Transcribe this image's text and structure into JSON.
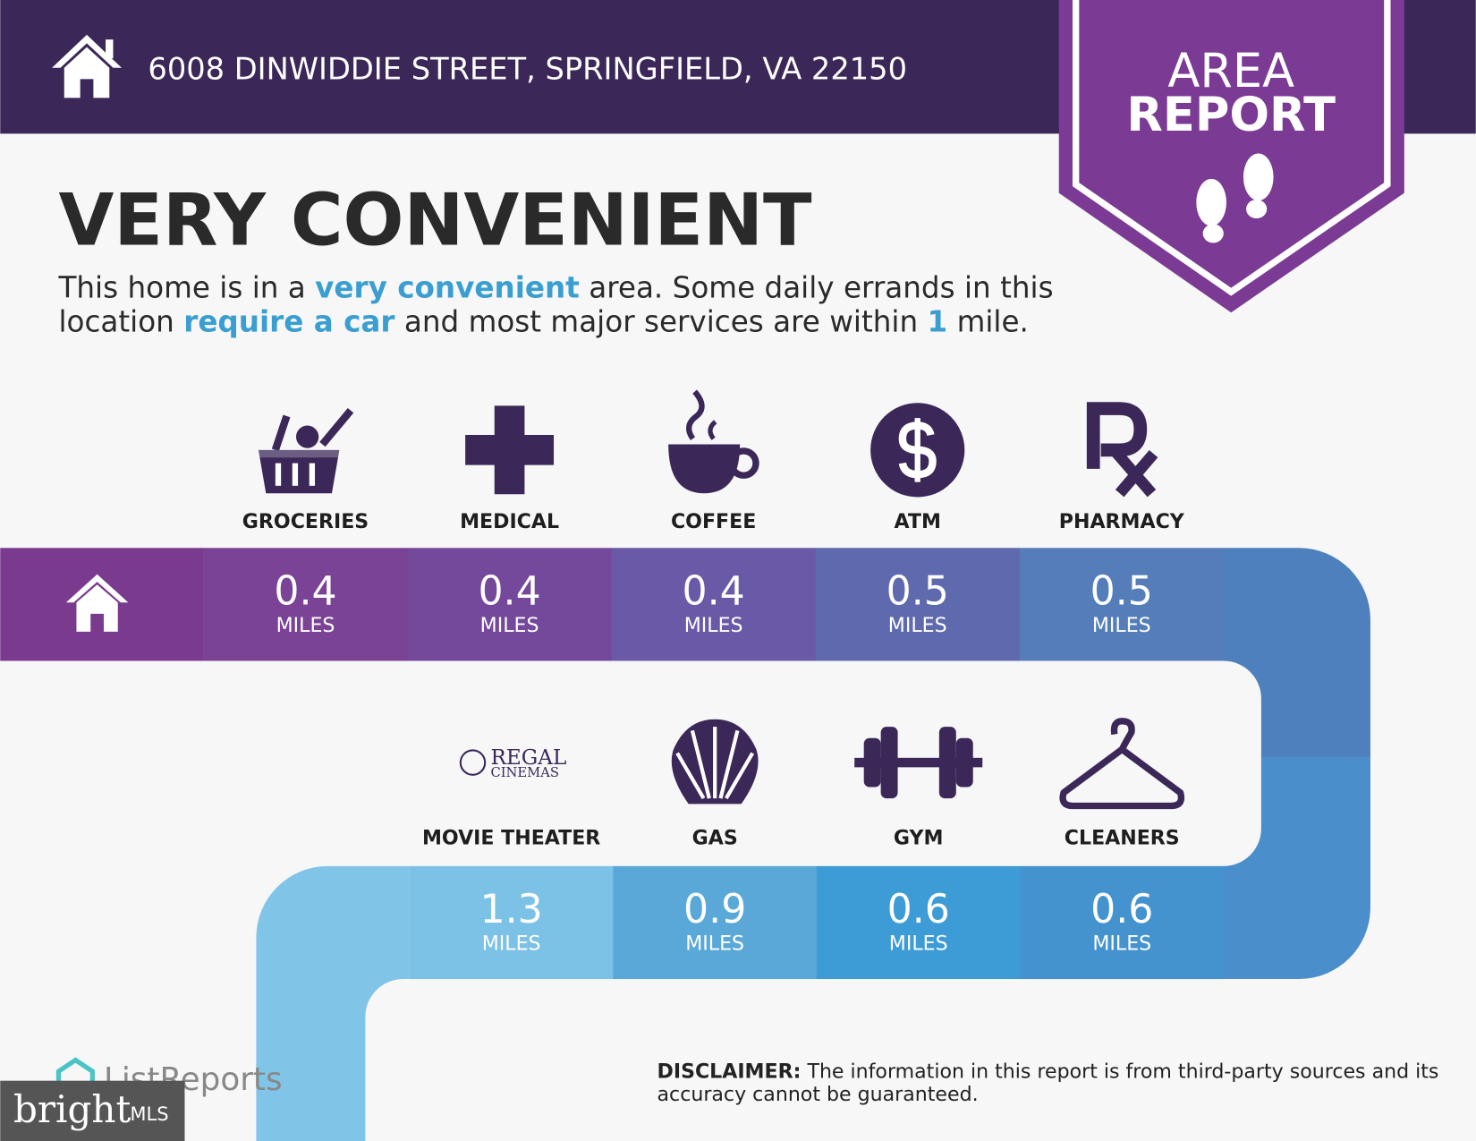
{
  "header": {
    "address": "6008 DINWIDDIE STREET, SPRINGFIELD, VA 22150"
  },
  "badge": {
    "line1": "AREA",
    "line2": "REPORT"
  },
  "heading": "VERY CONVENIENT",
  "description": {
    "lines": [
      [
        {
          "text": "This home is in a "
        },
        {
          "text": "very convenient",
          "highlight": true
        },
        {
          "text": " area. Some daily errands in this"
        }
      ],
      [
        {
          "text": "location "
        },
        {
          "text": "require a car",
          "highlight": true
        },
        {
          "text": " and most major services are within "
        },
        {
          "text": "1",
          "highlight": true
        },
        {
          "text": " mile."
        }
      ]
    ]
  },
  "rows": [
    {
      "items": [
        {
          "label": "GROCERIES",
          "distance": 0.4,
          "unit": "MILES"
        },
        {
          "label": "MEDICAL",
          "distance": 0.4,
          "unit": "MILES"
        },
        {
          "label": "COFFEE",
          "distance": 0.4,
          "unit": "MILES"
        },
        {
          "label": "ATM",
          "distance": 0.5,
          "unit": "MILES"
        },
        {
          "label": "PHARMACY",
          "distance": 0.5,
          "unit": "MILES"
        }
      ]
    },
    {
      "items": [
        {
          "label": "MOVIE THEATER",
          "distance": 1.3,
          "unit": "MILES",
          "logo": [
            "REGAL",
            "CINEMAS"
          ]
        },
        {
          "label": "GAS",
          "distance": 0.9,
          "unit": "MILES"
        },
        {
          "label": "GYM",
          "distance": 0.6,
          "unit": "MILES"
        },
        {
          "label": "CLEANERS",
          "distance": 0.6,
          "unit": "MILES"
        }
      ]
    }
  ],
  "footer": {
    "brand": "ListReports",
    "mls_brand": "bright",
    "mls": "MLS",
    "disclaimer_label": "DISCLAIMER:",
    "disclaimer_lines": [
      " The information in this report is from third-party sources and its",
      "accuracy cannot be guaranteed."
    ]
  }
}
